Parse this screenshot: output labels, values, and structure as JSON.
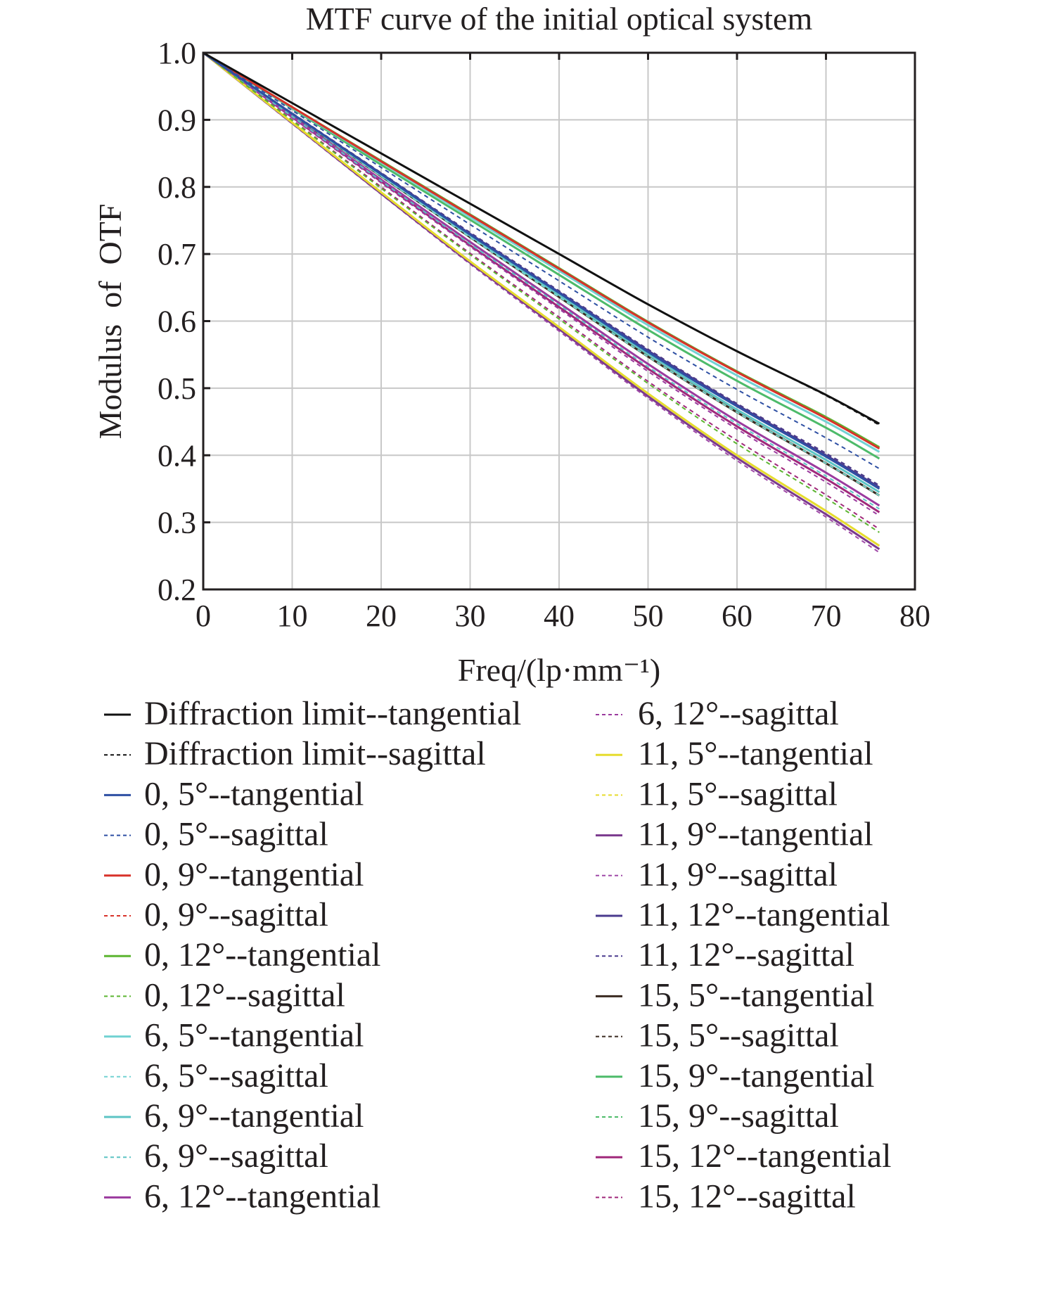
{
  "chart_data": {
    "type": "line",
    "title": "MTF curve of the initial optical system",
    "xlabel": "Freq/(lp·mm⁻¹)",
    "ylabel": "Modulus  of  OTF",
    "xlim": [
      0,
      80
    ],
    "ylim": [
      0.2,
      1.0
    ],
    "xticks": [
      "0",
      "10",
      "20",
      "30",
      "40",
      "50",
      "60",
      "70",
      "80"
    ],
    "yticks": [
      "0.2",
      "0.3",
      "0.4",
      "0.5",
      "0.6",
      "0.7",
      "0.8",
      "0.9",
      "1.0"
    ],
    "grid": true,
    "legend_position": "below",
    "x": [
      0,
      10,
      20,
      30,
      40,
      50,
      60,
      70,
      76
    ],
    "series": [
      {
        "name": "Diffraction limit--tangential",
        "color": "#111111",
        "dash": false,
        "values": [
          1,
          0.925,
          0.85,
          0.775,
          0.7,
          0.625,
          0.555,
          0.49,
          0.447
        ]
      },
      {
        "name": "Diffraction limit--sagittal",
        "color": "#111111",
        "dash": true,
        "values": [
          1,
          0.925,
          0.85,
          0.775,
          0.7,
          0.625,
          0.555,
          0.489,
          0.445
        ]
      },
      {
        "name": "0, 5°--tangential",
        "color": "#2e4fa3",
        "dash": false,
        "values": [
          1,
          0.909,
          0.819,
          0.729,
          0.642,
          0.554,
          0.473,
          0.398,
          0.35
        ]
      },
      {
        "name": "0, 5°--sagittal",
        "color": "#2e4fa3",
        "dash": true,
        "values": [
          1,
          0.914,
          0.829,
          0.744,
          0.66,
          0.576,
          0.498,
          0.426,
          0.38
        ]
      },
      {
        "name": "0, 9°--tangential",
        "color": "#d8322a",
        "dash": false,
        "values": [
          1,
          0.919,
          0.838,
          0.758,
          0.678,
          0.598,
          0.524,
          0.455,
          0.41
        ]
      },
      {
        "name": "0, 9°--sagittal",
        "color": "#d8322a",
        "dash": true,
        "values": [
          1,
          0.919,
          0.838,
          0.758,
          0.678,
          0.598,
          0.524,
          0.455,
          0.41
        ]
      },
      {
        "name": "0, 12°--tangential",
        "color": "#5cb531",
        "dash": false,
        "values": [
          1,
          0.919,
          0.839,
          0.759,
          0.679,
          0.599,
          0.525,
          0.457,
          0.412
        ]
      },
      {
        "name": "0, 12°--sagittal",
        "color": "#5cb531",
        "dash": true,
        "values": [
          1,
          0.899,
          0.798,
          0.699,
          0.603,
          0.507,
          0.417,
          0.336,
          0.285
        ]
      },
      {
        "name": "6, 5°--tangential",
        "color": "#72d2d2",
        "dash": false,
        "values": [
          1,
          0.918,
          0.837,
          0.755,
          0.675,
          0.594,
          0.519,
          0.45,
          0.405
        ]
      },
      {
        "name": "6, 5°--sagittal",
        "color": "#72d2d2",
        "dash": true,
        "values": [
          1,
          0.908,
          0.816,
          0.725,
          0.636,
          0.547,
          0.464,
          0.388,
          0.34
        ]
      },
      {
        "name": "6, 9°--tangential",
        "color": "#5cc4c4",
        "dash": false,
        "values": [
          1,
          0.909,
          0.817,
          0.727,
          0.639,
          0.551,
          0.468,
          0.393,
          0.345
        ]
      },
      {
        "name": "6, 9°--sagittal",
        "color": "#5cc4c4",
        "dash": true,
        "values": [
          1,
          0.905,
          0.809,
          0.715,
          0.624,
          0.532,
          0.447,
          0.369,
          0.32
        ]
      },
      {
        "name": "6, 12°--tangential",
        "color": "#9b3a9e",
        "dash": false,
        "values": [
          1,
          0.905,
          0.811,
          0.718,
          0.627,
          0.536,
          0.451,
          0.374,
          0.325
        ]
      },
      {
        "name": "6, 12°--sagittal",
        "color": "#9b3a9e",
        "dash": true,
        "values": [
          1,
          0.903,
          0.806,
          0.711,
          0.618,
          0.525,
          0.439,
          0.36,
          0.31
        ]
      },
      {
        "name": "11, 5°--tangential",
        "color": "#e6dc2e",
        "dash": false,
        "values": [
          1,
          0.896,
          0.792,
          0.689,
          0.591,
          0.492,
          0.4,
          0.317,
          0.265
        ]
      },
      {
        "name": "11, 5°--sagittal",
        "color": "#e6dc2e",
        "dash": true,
        "values": [
          1,
          0.908,
          0.816,
          0.725,
          0.636,
          0.547,
          0.464,
          0.388,
          0.34
        ]
      },
      {
        "name": "11, 9°--tangential",
        "color": "#7b3a8e",
        "dash": false,
        "values": [
          1,
          0.895,
          0.79,
          0.687,
          0.588,
          0.488,
          0.396,
          0.312,
          0.26
        ]
      },
      {
        "name": "11, 9°--sagittal",
        "color": "#a04aa8",
        "dash": true,
        "values": [
          1,
          0.894,
          0.789,
          0.685,
          0.585,
          0.485,
          0.392,
          0.308,
          0.255
        ]
      },
      {
        "name": "11, 12°--tangential",
        "color": "#4a3a8e",
        "dash": false,
        "values": [
          1,
          0.909,
          0.82,
          0.73,
          0.643,
          0.556,
          0.475,
          0.4,
          0.352
        ]
      },
      {
        "name": "11, 12°--sagittal",
        "color": "#4a3a8e",
        "dash": true,
        "values": [
          1,
          0.91,
          0.821,
          0.732,
          0.645,
          0.558,
          0.477,
          0.403,
          0.355
        ]
      },
      {
        "name": "15, 5°--tangential",
        "color": "#3a2a20",
        "dash": false,
        "values": [
          1,
          0.908,
          0.816,
          0.725,
          0.636,
          0.547,
          0.464,
          0.388,
          0.34
        ]
      },
      {
        "name": "15, 5°--sagittal",
        "color": "#3a2a20",
        "dash": true,
        "values": [
          1,
          0.91,
          0.821,
          0.732,
          0.645,
          0.558,
          0.477,
          0.403,
          0.355
        ]
      },
      {
        "name": "15, 9°--tangential",
        "color": "#4dbb6a",
        "dash": false,
        "values": [
          1,
          0.917,
          0.833,
          0.751,
          0.669,
          0.587,
          0.511,
          0.441,
          0.395
        ]
      },
      {
        "name": "15, 9°--sagittal",
        "color": "#4dbb6a",
        "dash": true,
        "values": [
          1,
          0.909,
          0.819,
          0.729,
          0.642,
          0.554,
          0.473,
          0.398,
          0.35
        ]
      },
      {
        "name": "15, 12°--tangential",
        "color": "#a0287a",
        "dash": false,
        "values": [
          1,
          0.904,
          0.808,
          0.713,
          0.621,
          0.529,
          0.443,
          0.365,
          0.315
        ]
      },
      {
        "name": "15, 12°--sagittal",
        "color": "#a0287a",
        "dash": true,
        "values": [
          1,
          0.9,
          0.8,
          0.701,
          0.606,
          0.51,
          0.422,
          0.341,
          0.29
        ]
      }
    ]
  }
}
